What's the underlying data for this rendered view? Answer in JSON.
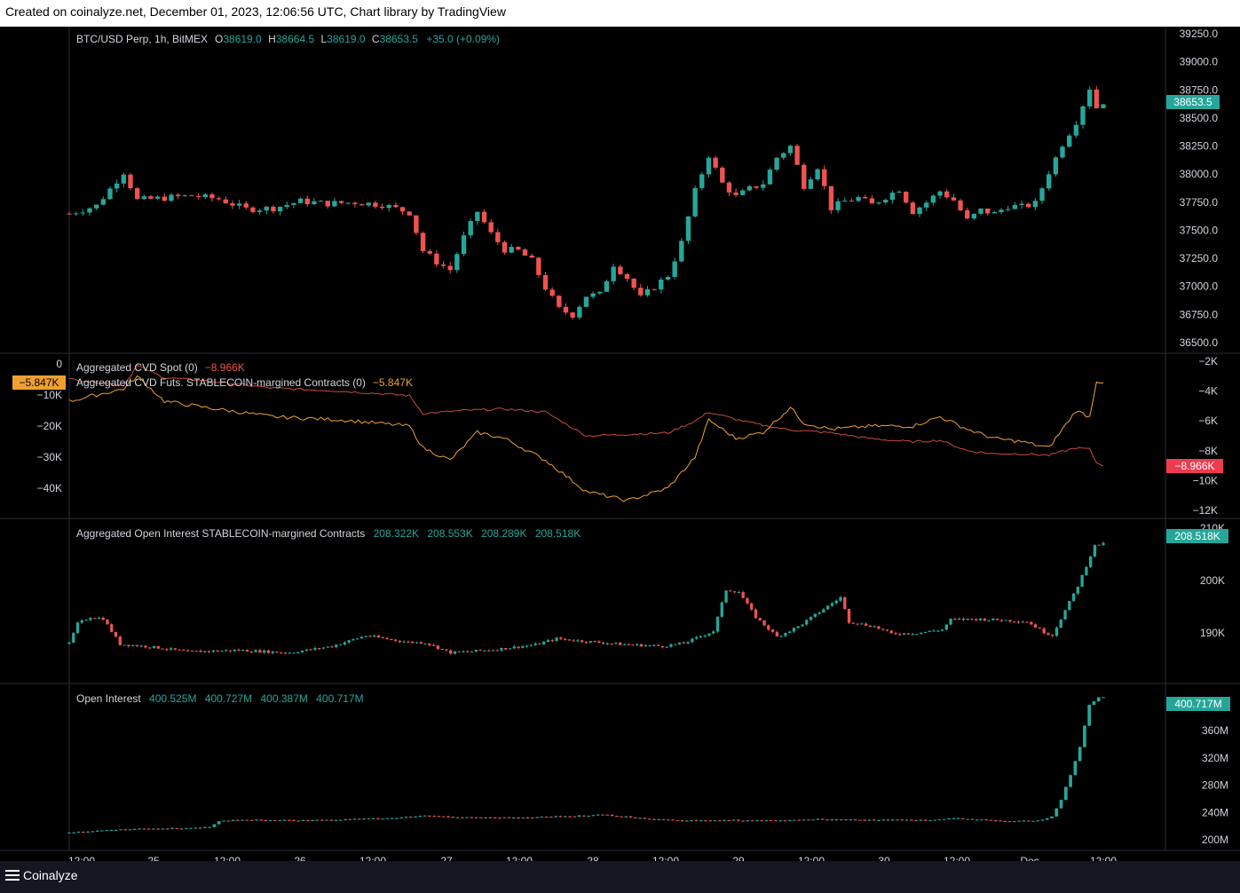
{
  "header": {
    "caption": "Created on coinalyze.net, December 01, 2023, 12:06:56 UTC, Chart library by TradingView"
  },
  "footer": {
    "brand": "Coinalyze"
  },
  "colors": {
    "up": "#26a69a",
    "down": "#ef5350",
    "cvd_spot": "#c94a3c",
    "cvd_futs": "#f0a030",
    "grid": "#2a2e39"
  },
  "x_labels": [
    "12:00",
    "25",
    "12:00",
    "26",
    "12:00",
    "27",
    "12:00",
    "28",
    "12:00",
    "29",
    "12:00",
    "30",
    "12:00",
    "Dec",
    "12:00"
  ],
  "panes": {
    "price": {
      "legend": {
        "symbol": "BTC/USD Perp, 1h, BitMEX",
        "o_key": "O",
        "o": "38619.0",
        "h_key": "H",
        "h": "38664.5",
        "l_key": "L",
        "l": "38619.0",
        "c_key": "C",
        "c": "38653.5",
        "chg": "+35.0 (+0.09%)"
      },
      "ticks": [
        "39250.0",
        "39000.0",
        "38750.0",
        "38500.0",
        "38250.0",
        "38000.0",
        "37750.0",
        "37500.0",
        "37250.0",
        "37000.0",
        "36750.0",
        "36500.0"
      ],
      "last_label": "38653.5"
    },
    "cvd": {
      "legend1": {
        "name": "Aggregated CVD Spot (0)",
        "value": "−8.966K"
      },
      "legend2": {
        "name": "Aggregated CVD Futs. STABLECOIN-margined Contracts (0)",
        "value": "−5.847K"
      },
      "left_ticks": [
        "0",
        "−10K",
        "−20K",
        "−30K",
        "−40K"
      ],
      "left_label": "−5.847K",
      "right_ticks": [
        "−2K",
        "−4K",
        "−6K",
        "−8K",
        "−10K",
        "−12K"
      ],
      "right_label": "−8.966K"
    },
    "agg_oi": {
      "legend": {
        "name": "Aggregated Open Interest STABLECOIN-margined Contracts",
        "o": "208.322K",
        "h": "208.553K",
        "l": "208.289K",
        "c": "208.518K"
      },
      "ticks": [
        "210K",
        "200K",
        "190K"
      ],
      "last_label": "208.518K"
    },
    "oi": {
      "legend": {
        "name": "Open Interest",
        "o": "400.525M",
        "h": "400.727M",
        "l": "400.387M",
        "c": "400.717M"
      },
      "ticks": [
        "360M",
        "320M",
        "280M",
        "240M",
        "200M"
      ],
      "last_label": "400.717M"
    }
  },
  "chart_data": [
    {
      "type": "candlestick",
      "title": "BTC/USD Perp, 1h, BitMEX",
      "ylim": [
        36500,
        39250
      ],
      "close_path": [
        [
          0,
          37680
        ],
        [
          4,
          37750
        ],
        [
          8,
          38050
        ],
        [
          10,
          37800
        ],
        [
          14,
          37820
        ],
        [
          18,
          37840
        ],
        [
          22,
          37810
        ],
        [
          26,
          37720
        ],
        [
          30,
          37730
        ],
        [
          34,
          37790
        ],
        [
          38,
          37770
        ],
        [
          42,
          37780
        ],
        [
          46,
          37760
        ],
        [
          50,
          37690
        ],
        [
          52,
          37350
        ],
        [
          54,
          37250
        ],
        [
          56,
          37180
        ],
        [
          58,
          37470
        ],
        [
          60,
          37700
        ],
        [
          62,
          37500
        ],
        [
          64,
          37360
        ],
        [
          66,
          37350
        ],
        [
          68,
          37260
        ],
        [
          70,
          37020
        ],
        [
          72,
          36830
        ],
        [
          74,
          36780
        ],
        [
          76,
          36950
        ],
        [
          78,
          36960
        ],
        [
          80,
          37230
        ],
        [
          82,
          37110
        ],
        [
          84,
          36930
        ],
        [
          86,
          37030
        ],
        [
          88,
          37130
        ],
        [
          90,
          37420
        ],
        [
          92,
          37880
        ],
        [
          94,
          38200
        ],
        [
          96,
          37950
        ],
        [
          98,
          37830
        ],
        [
          100,
          37900
        ],
        [
          102,
          37950
        ],
        [
          104,
          38180
        ],
        [
          106,
          38280
        ],
        [
          108,
          37930
        ],
        [
          110,
          38100
        ],
        [
          112,
          37730
        ],
        [
          114,
          37790
        ],
        [
          116,
          37820
        ],
        [
          118,
          37760
        ],
        [
          120,
          37830
        ],
        [
          122,
          37900
        ],
        [
          124,
          37700
        ],
        [
          126,
          37780
        ],
        [
          128,
          37880
        ],
        [
          130,
          37800
        ],
        [
          132,
          37620
        ],
        [
          134,
          37710
        ],
        [
          136,
          37680
        ],
        [
          138,
          37750
        ],
        [
          140,
          37740
        ],
        [
          142,
          37770
        ],
        [
          144,
          38050
        ],
        [
          146,
          38300
        ],
        [
          148,
          38500
        ],
        [
          150,
          38800
        ],
        [
          151,
          38625
        ],
        [
          152,
          38653
        ]
      ]
    },
    {
      "type": "line",
      "series": [
        {
          "name": "Aggregated CVD Spot (0)",
          "axis": "right",
          "points": [
            [
              0,
              -3200
            ],
            [
              8,
              -3600
            ],
            [
              10,
              -2300
            ],
            [
              14,
              -3100
            ],
            [
              20,
              -3300
            ],
            [
              30,
              -3800
            ],
            [
              40,
              -4000
            ],
            [
              50,
              -4300
            ],
            [
              52,
              -5500
            ],
            [
              58,
              -5300
            ],
            [
              64,
              -5200
            ],
            [
              70,
              -5400
            ],
            [
              76,
              -7000
            ],
            [
              82,
              -6900
            ],
            [
              88,
              -6800
            ],
            [
              92,
              -6000
            ],
            [
              94,
              -5400
            ],
            [
              98,
              -5900
            ],
            [
              102,
              -6300
            ],
            [
              106,
              -6600
            ],
            [
              112,
              -6800
            ],
            [
              118,
              -7200
            ],
            [
              124,
              -7400
            ],
            [
              128,
              -7300
            ],
            [
              132,
              -8000
            ],
            [
              136,
              -8200
            ],
            [
              140,
              -8200
            ],
            [
              144,
              -8300
            ],
            [
              148,
              -7800
            ],
            [
              150,
              -7900
            ],
            [
              151,
              -8800
            ],
            [
              152,
              -8966
            ]
          ]
        },
        {
          "name": "Aggregated CVD Futs. STABLECOIN-margined Contracts (0)",
          "axis": "left",
          "points": [
            [
              0,
              -12000
            ],
            [
              8,
              -8000
            ],
            [
              10,
              -4000
            ],
            [
              14,
              -12000
            ],
            [
              20,
              -14000
            ],
            [
              30,
              -17000
            ],
            [
              40,
              -18000
            ],
            [
              50,
              -20000
            ],
            [
              52,
              -27000
            ],
            [
              56,
              -31000
            ],
            [
              60,
              -22000
            ],
            [
              64,
              -24000
            ],
            [
              70,
              -31000
            ],
            [
              76,
              -41000
            ],
            [
              82,
              -44000
            ],
            [
              88,
              -40000
            ],
            [
              92,
              -30000
            ],
            [
              94,
              -18000
            ],
            [
              98,
              -24000
            ],
            [
              102,
              -22000
            ],
            [
              106,
              -14000
            ],
            [
              108,
              -19000
            ],
            [
              112,
              -21000
            ],
            [
              118,
              -20000
            ],
            [
              124,
              -20000
            ],
            [
              128,
              -17000
            ],
            [
              132,
              -21000
            ],
            [
              136,
              -24000
            ],
            [
              140,
              -25000
            ],
            [
              144,
              -27000
            ],
            [
              148,
              -15000
            ],
            [
              150,
              -17000
            ],
            [
              151,
              -5500
            ],
            [
              152,
              -5847
            ]
          ]
        }
      ]
    },
    {
      "type": "candlestick",
      "title": "Aggregated Open Interest STABLECOIN-margined Contracts",
      "ylim": [
        182000,
        212000
      ],
      "close_path": [
        [
          0,
          188500
        ],
        [
          2,
          192500
        ],
        [
          5,
          193800
        ],
        [
          8,
          193500
        ],
        [
          12,
          188400
        ],
        [
          20,
          187800
        ],
        [
          28,
          186900
        ],
        [
          40,
          187200
        ],
        [
          52,
          186700
        ],
        [
          62,
          188000
        ],
        [
          70,
          190100
        ],
        [
          80,
          188800
        ],
        [
          84,
          188700
        ],
        [
          90,
          186700
        ],
        [
          100,
          187300
        ],
        [
          110,
          188300
        ],
        [
          115,
          189500
        ],
        [
          120,
          189100
        ],
        [
          130,
          188400
        ],
        [
          140,
          188000
        ],
        [
          145,
          188600
        ],
        [
          150,
          190300
        ],
        [
          152,
          191000
        ],
        [
          155,
          199200
        ],
        [
          158,
          198800
        ],
        [
          162,
          193800
        ],
        [
          167,
          189900
        ],
        [
          172,
          191900
        ],
        [
          178,
          195400
        ],
        [
          182,
          197700
        ],
        [
          184,
          192900
        ],
        [
          190,
          191900
        ],
        [
          194,
          190500
        ],
        [
          200,
          190600
        ],
        [
          206,
          191300
        ],
        [
          208,
          193300
        ],
        [
          214,
          193400
        ],
        [
          220,
          193200
        ],
        [
          226,
          192900
        ],
        [
          230,
          190800
        ],
        [
          232,
          190200
        ],
        [
          234,
          193500
        ],
        [
          238,
          200000
        ],
        [
          240,
          204000
        ],
        [
          242,
          208000
        ],
        [
          244,
          208518
        ]
      ]
    },
    {
      "type": "candlestick",
      "title": "Open Interest",
      "ylim": [
        193000,
        410000
      ],
      "close_path": [
        [
          0,
          208000
        ],
        [
          6,
          211000
        ],
        [
          14,
          213000
        ],
        [
          22,
          214000
        ],
        [
          30,
          216000
        ],
        [
          32,
          225000
        ],
        [
          40,
          226000
        ],
        [
          50,
          225500
        ],
        [
          60,
          227000
        ],
        [
          70,
          229000
        ],
        [
          76,
          232000
        ],
        [
          82,
          230500
        ],
        [
          90,
          229000
        ],
        [
          100,
          230000
        ],
        [
          110,
          232000
        ],
        [
          114,
          234000
        ],
        [
          118,
          231000
        ],
        [
          126,
          227000
        ],
        [
          130,
          225000
        ],
        [
          140,
          226000
        ],
        [
          150,
          225000
        ],
        [
          160,
          227000
        ],
        [
          170,
          226000
        ],
        [
          180,
          226000
        ],
        [
          184,
          226500
        ],
        [
          190,
          228000
        ],
        [
          196,
          226000
        ],
        [
          200,
          224000
        ],
        [
          208,
          226000
        ],
        [
          210,
          231000
        ],
        [
          212,
          255000
        ],
        [
          214,
          290000
        ],
        [
          216,
          330000
        ],
        [
          218,
          390000
        ],
        [
          220,
          400000
        ],
        [
          221,
          400717
        ]
      ]
    }
  ]
}
